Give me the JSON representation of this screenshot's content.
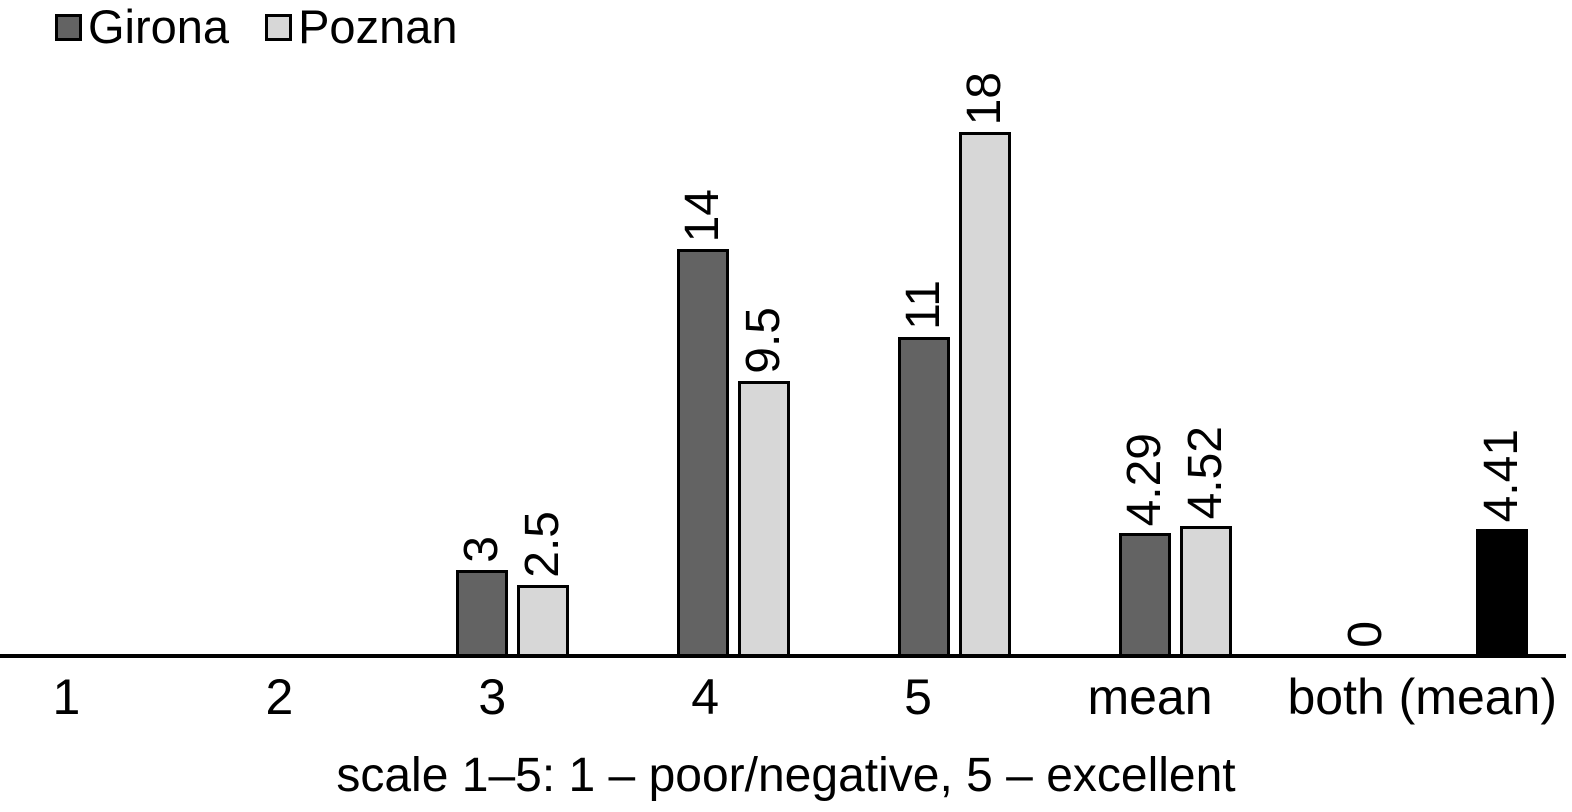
{
  "chart_data": {
    "type": "bar",
    "title": "",
    "xlabel": "scale 1–5: 1 – poor/negative, 5 – excellent",
    "ylabel": "",
    "ylim": [
      0,
      20
    ],
    "grid": false,
    "legend_position": "top-left",
    "axis_color": "#000000",
    "categories": [
      "1",
      "2",
      "3",
      "4",
      "5",
      "mean",
      "both (mean)"
    ],
    "series": [
      {
        "name": "Girona",
        "color": "#636363",
        "values": [
          0,
          0,
          3,
          14,
          11,
          4.29,
          0
        ]
      },
      {
        "name": "Poznan",
        "color": "#d7d7d7",
        "values": [
          0,
          0,
          2.5,
          9.5,
          18,
          4.52,
          null
        ]
      },
      {
        "name": "both (mean)",
        "color": "#000000",
        "values": [
          null,
          null,
          null,
          null,
          null,
          null,
          4.41
        ]
      }
    ],
    "groups": [
      {
        "category": "1",
        "bars": []
      },
      {
        "category": "2",
        "bars": []
      },
      {
        "category": "3",
        "bars": [
          {
            "series": "Girona",
            "value": 3,
            "label": "3",
            "color": "#636363"
          },
          {
            "series": "Poznan",
            "value": 2.5,
            "label": "2.5",
            "color": "#d7d7d7"
          }
        ]
      },
      {
        "category": "4",
        "bars": [
          {
            "series": "Girona",
            "value": 14,
            "label": "14",
            "color": "#636363"
          },
          {
            "series": "Poznan",
            "value": 9.5,
            "label": "9.5",
            "color": "#d7d7d7"
          }
        ]
      },
      {
        "category": "5",
        "bars": [
          {
            "series": "Girona",
            "value": 11,
            "label": "11",
            "color": "#636363"
          },
          {
            "series": "Poznan",
            "value": 18,
            "label": "18",
            "color": "#d7d7d7"
          }
        ]
      },
      {
        "category": "mean",
        "bars": [
          {
            "series": "Girona",
            "value": 4.29,
            "label": "4.29",
            "color": "#636363"
          },
          {
            "series": "Poznan",
            "value": 4.52,
            "label": "4.52",
            "color": "#d7d7d7"
          }
        ]
      },
      {
        "category": "both (mean)",
        "bars": [
          {
            "series": "Girona",
            "value": 0,
            "label": "0",
            "color": "#636363"
          },
          {
            "series": "both (mean)",
            "value": 4.41,
            "label": "4.41",
            "color": "#000000"
          }
        ]
      }
    ]
  },
  "legend": {
    "items": [
      {
        "label": "Girona",
        "color": "#636363"
      },
      {
        "label": "Poznan",
        "color": "#d7d7d7"
      }
    ]
  }
}
